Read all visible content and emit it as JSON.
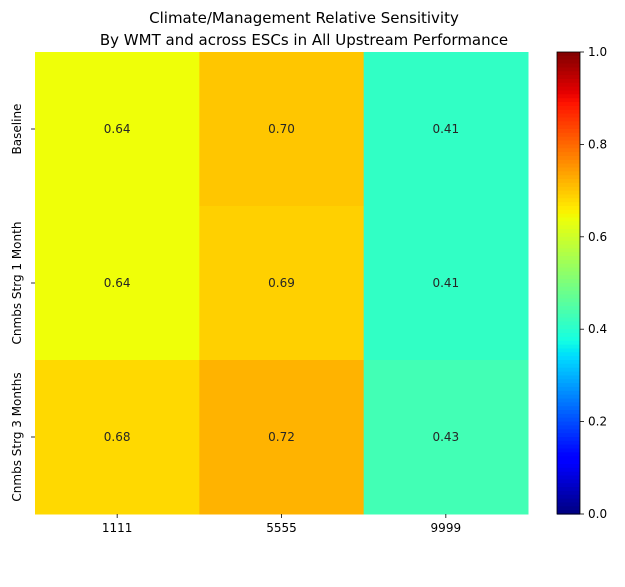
{
  "chart_data": {
    "type": "heatmap",
    "title_lines": [
      "Climate/Management Relative Sensitivity",
      "By WMT and across ESCs in All Upstream Performance"
    ],
    "xlabel": "",
    "ylabel": "",
    "x_categories": [
      "1111",
      "5555",
      "9999"
    ],
    "y_categories": [
      "Baseline",
      "Cnmbs Strg 1 Month",
      "Cnmbs Strg 3 Months"
    ],
    "values": [
      [
        0.64,
        0.7,
        0.41
      ],
      [
        0.64,
        0.69,
        0.41
      ],
      [
        0.68,
        0.72,
        0.43
      ]
    ],
    "value_labels": [
      [
        "0.64",
        "0.70",
        "0.41"
      ],
      [
        "0.64",
        "0.69",
        "0.41"
      ],
      [
        "0.68",
        "0.72",
        "0.43"
      ]
    ],
    "colormap": "jet",
    "vmin": 0.0,
    "vmax": 1.0,
    "colorbar_ticks": [
      "0.0",
      "0.2",
      "0.4",
      "0.6",
      "0.8",
      "1.0"
    ]
  }
}
